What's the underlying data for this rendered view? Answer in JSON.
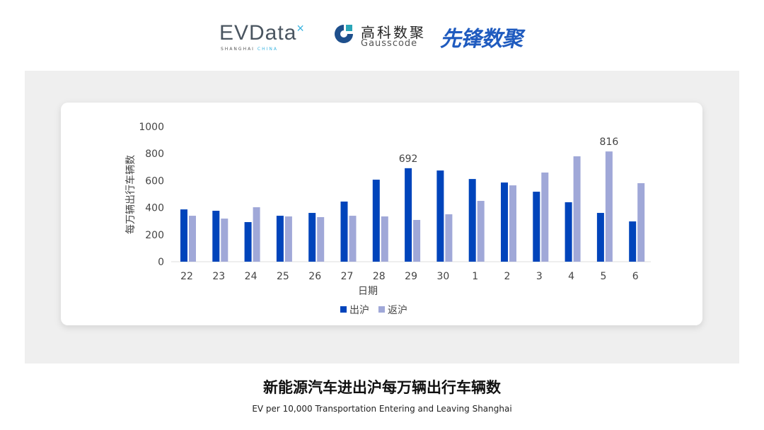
{
  "logos": {
    "evdata": "EVData",
    "evdata_sub": "SHANGHAI",
    "evdata_sub2": "CHINA",
    "gauss_cn": "高科数聚",
    "gauss_en": "Gausscode",
    "xianfeng": "先锋数聚"
  },
  "title": "新能源汽车进出沪每万辆出行车辆数",
  "subtitle": "EV per 10,000 Transportation Entering and Leaving Shanghai",
  "colors": {
    "out": "#0044bb",
    "return": "#a0a8d8"
  },
  "chart_data": {
    "type": "bar",
    "categories": [
      "22",
      "23",
      "24",
      "25",
      "26",
      "27",
      "28",
      "29",
      "30",
      "1",
      "2",
      "3",
      "4",
      "5",
      "6"
    ],
    "series": [
      {
        "name": "出沪",
        "values": [
          387,
          377,
          293,
          340,
          361,
          445,
          607,
          692,
          675,
          612,
          586,
          518,
          440,
          361,
          298
        ]
      },
      {
        "name": "返沪",
        "values": [
          340,
          319,
          403,
          335,
          330,
          340,
          335,
          309,
          351,
          450,
          565,
          660,
          780,
          816,
          581
        ]
      }
    ],
    "data_labels": [
      {
        "series": 0,
        "category": "29",
        "text": "692"
      },
      {
        "series": 1,
        "category": "5",
        "text": "816"
      }
    ],
    "xlabel": "日期",
    "ylabel": "每万辆出行车辆数",
    "ylim": [
      0,
      1000
    ],
    "yticks": [
      "0",
      "200",
      "400",
      "600",
      "800",
      "1000"
    ],
    "grid": false,
    "legend": "bottom"
  }
}
